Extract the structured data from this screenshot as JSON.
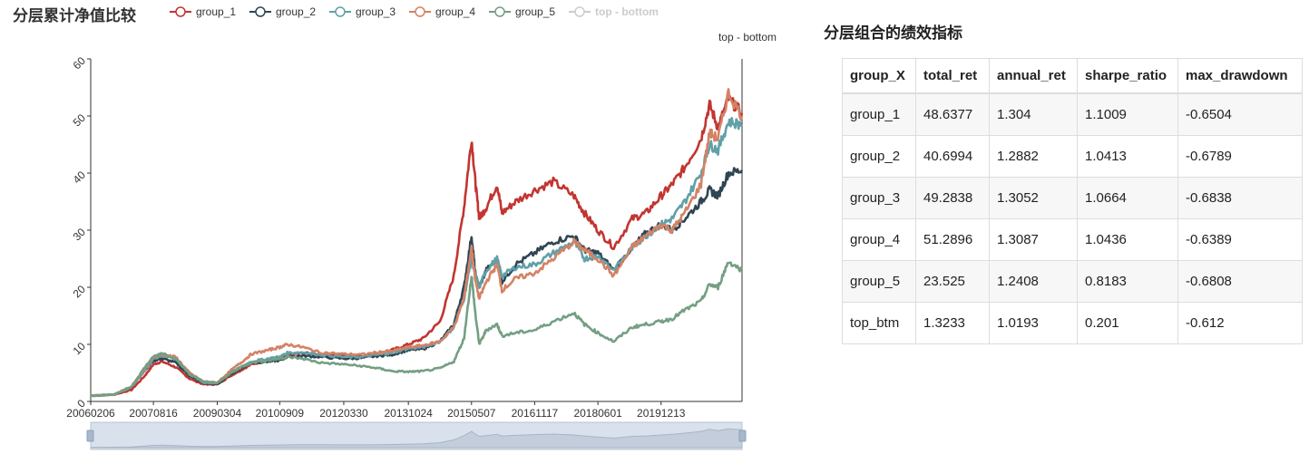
{
  "chart_data": {
    "type": "line",
    "title": "分层累计净值比较",
    "legend": [
      "group_1",
      "group_2",
      "group_3",
      "group_4",
      "group_5",
      "top - bottom"
    ],
    "legend_inactive": [
      "top - bottom"
    ],
    "right_axis_label": "top - bottom",
    "ylim": [
      0,
      60
    ],
    "yticks": [
      "0",
      "10",
      "20",
      "30",
      "40",
      "50",
      "60"
    ],
    "x_range": [
      "2006-02-06",
      "2021-11-30"
    ],
    "xticks": [
      "20060206",
      "20070816",
      "20090304",
      "20100909",
      "20120330",
      "20131024",
      "20150507",
      "20161117",
      "20180601",
      "20191213"
    ],
    "colors": {
      "group_1": "#c23531",
      "group_2": "#2f4554",
      "group_3": "#61a0a8",
      "group_4": "#d48265",
      "group_5": "#749f83",
      "inactive": "#cccccc"
    },
    "dates": [
      "2006-02-06",
      "2006-09-01",
      "2007-02-01",
      "2007-06-01",
      "2007-08-16",
      "2007-11-01",
      "2008-03-01",
      "2008-07-01",
      "2008-11-01",
      "2009-03-04",
      "2009-07-01",
      "2009-10-01",
      "2010-01-01",
      "2010-06-01",
      "2010-09-09",
      "2010-11-15",
      "2011-04-01",
      "2011-09-01",
      "2012-03-30",
      "2012-09-01",
      "2013-02-01",
      "2013-06-01",
      "2013-10-24",
      "2014-03-01",
      "2014-08-01",
      "2014-12-01",
      "2015-03-01",
      "2015-05-07",
      "2015-06-12",
      "2015-07-15",
      "2015-09-15",
      "2015-12-20",
      "2016-02-01",
      "2016-06-01",
      "2016-11-17",
      "2017-05-01",
      "2017-11-01",
      "2018-02-01",
      "2018-06-01",
      "2018-10-20",
      "2019-04-01",
      "2019-08-01",
      "2019-12-13",
      "2020-03-20",
      "2020-07-10",
      "2020-12-01",
      "2021-02-15",
      "2021-05-01",
      "2021-08-01",
      "2021-11-30"
    ],
    "series": [
      {
        "name": "group_1",
        "values": [
          1.0,
          1.2,
          2.0,
          4.5,
          6.5,
          7.0,
          6.0,
          4.0,
          3.0,
          3.0,
          4.5,
          5.5,
          6.5,
          7.2,
          7.5,
          8.0,
          8.5,
          8.2,
          8.0,
          8.0,
          8.5,
          9.0,
          10.0,
          11.0,
          14.0,
          22.0,
          34.0,
          46.0,
          38.0,
          32.0,
          34.0,
          38.0,
          33.0,
          35.0,
          37.0,
          38.5,
          36.0,
          33.0,
          30.0,
          27.0,
          32.0,
          33.0,
          36.0,
          38.0,
          41.0,
          46.0,
          52.0,
          48.0,
          53.0,
          50.5
        ]
      },
      {
        "name": "group_2",
        "values": [
          1.0,
          1.2,
          2.5,
          5.5,
          7.2,
          7.5,
          6.8,
          4.5,
          3.2,
          3.0,
          4.8,
          5.8,
          6.8,
          7.0,
          7.2,
          7.8,
          8.0,
          7.8,
          7.5,
          7.6,
          8.0,
          8.2,
          9.0,
          9.2,
          10.5,
          13.5,
          20.0,
          29.0,
          22.0,
          20.0,
          23.0,
          25.0,
          21.0,
          24.0,
          26.0,
          28.0,
          29.0,
          26.5,
          26.0,
          23.0,
          27.0,
          29.5,
          31.0,
          30.0,
          32.0,
          35.0,
          37.0,
          36.0,
          40.0,
          40.5
        ]
      },
      {
        "name": "group_3",
        "values": [
          1.0,
          1.2,
          2.5,
          5.5,
          7.5,
          8.0,
          7.5,
          4.8,
          3.3,
          3.2,
          5.0,
          6.0,
          7.0,
          7.5,
          7.8,
          8.5,
          8.6,
          8.2,
          7.8,
          7.8,
          8.2,
          8.5,
          9.3,
          9.5,
          10.5,
          13.0,
          18.0,
          25.0,
          22.0,
          20.0,
          23.0,
          25.0,
          22.0,
          23.5,
          24.0,
          26.0,
          28.0,
          25.0,
          25.5,
          23.0,
          27.0,
          29.0,
          31.0,
          32.0,
          35.0,
          40.0,
          45.0,
          44.0,
          49.0,
          48.5
        ]
      },
      {
        "name": "group_4",
        "values": [
          1.0,
          1.2,
          2.6,
          5.8,
          7.8,
          8.2,
          7.8,
          5.0,
          3.5,
          3.3,
          5.4,
          6.8,
          8.3,
          9.0,
          9.5,
          10.0,
          9.5,
          8.6,
          8.3,
          8.2,
          8.6,
          8.8,
          9.5,
          9.8,
          10.5,
          13.0,
          18.0,
          27.0,
          21.0,
          18.0,
          21.0,
          24.0,
          19.5,
          21.5,
          22.5,
          25.0,
          28.0,
          26.5,
          25.0,
          22.0,
          27.0,
          29.0,
          31.0,
          30.0,
          33.0,
          38.0,
          47.0,
          46.0,
          54.0,
          50.0
        ]
      },
      {
        "name": "group_5",
        "values": [
          1.0,
          1.2,
          2.6,
          6.0,
          7.8,
          8.5,
          7.5,
          4.8,
          3.5,
          3.2,
          5.0,
          6.0,
          6.8,
          7.2,
          7.5,
          7.8,
          7.5,
          6.8,
          6.5,
          6.2,
          5.8,
          5.3,
          5.2,
          5.3,
          5.8,
          7.0,
          11.0,
          22.0,
          15.0,
          10.0,
          12.5,
          13.5,
          11.5,
          12.0,
          12.5,
          14.0,
          15.5,
          13.5,
          12.0,
          10.5,
          13.0,
          13.5,
          14.0,
          14.5,
          16.0,
          17.5,
          20.5,
          20.0,
          24.5,
          23.0
        ]
      }
    ]
  },
  "table": {
    "title": "分层组合的绩效指标",
    "headers": [
      "group_X",
      "total_ret",
      "annual_ret",
      "sharpe_ratio",
      "max_drawdown"
    ],
    "rows": [
      [
        "group_1",
        "48.6377",
        "1.304",
        "1.1009",
        "-0.6504"
      ],
      [
        "group_2",
        "40.6994",
        "1.2882",
        "1.0413",
        "-0.6789"
      ],
      [
        "group_3",
        "49.2838",
        "1.3052",
        "1.0664",
        "-0.6838"
      ],
      [
        "group_4",
        "51.2896",
        "1.3087",
        "1.0436",
        "-0.6389"
      ],
      [
        "group_5",
        "23.525",
        "1.2408",
        "0.8183",
        "-0.6808"
      ],
      [
        "top_btm",
        "1.3233",
        "1.0193",
        "0.201",
        "-0.612"
      ]
    ]
  }
}
